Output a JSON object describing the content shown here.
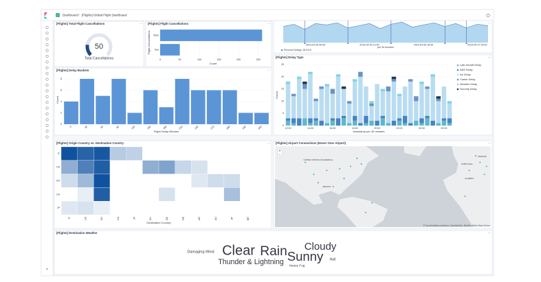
{
  "header": {
    "breadcrumb": "Dashboard",
    "title": "[Flights] Global Flight Dashboard"
  },
  "chart_data": [
    {
      "type": "gauge",
      "title": "[Flights] Total Flight Cancellations",
      "value": 50,
      "label": "Total Cancellations",
      "ylim": [
        0,
        250
      ],
      "color": "#1e4a86"
    },
    {
      "type": "hbar",
      "title": "[Flights] Flight Cancellations",
      "categories": [
        "false",
        "true"
      ],
      "values": [
        260,
        50
      ],
      "color": "#5b95d6",
      "xlim": [
        0,
        270
      ],
      "xticks": [
        0,
        50,
        100,
        150,
        200,
        250
      ],
      "x_label": "Count",
      "y_label": "Flight Cancellations"
    },
    {
      "type": "area",
      "categories": [
        null,
        null,
        null,
        "2019-04-26 06:00",
        null,
        null,
        null,
        null,
        "2019-04-26 12:00",
        null,
        null,
        null,
        null,
        "2019-04-26 18:00",
        null,
        null,
        null,
        null,
        "2019-04-27 00:00",
        null
      ],
      "series": [
        {
          "name": "Percent Delays",
          "color": "#6092c0",
          "values": [
            22,
            25,
            18,
            26,
            24,
            27,
            20,
            23,
            26,
            19,
            25,
            28,
            21,
            24,
            27,
            22,
            26,
            20,
            25,
            23
          ]
        }
      ],
      "legend_value": "15.91%",
      "ylim": [
        0,
        30
      ],
      "x_label": "per 30 minutes"
    },
    {
      "type": "bar",
      "title": "[Flights] Delay Buckets",
      "categories": [
        "0",
        "30",
        "60",
        "90",
        "120",
        "150",
        "180",
        "210",
        "240",
        "270",
        "300",
        "330",
        "360"
      ],
      "values": [
        4,
        8,
        5,
        8,
        2,
        6,
        3,
        8,
        6,
        6,
        6,
        2,
        2
      ],
      "color": "#5b95d6",
      "ylim": [
        0,
        8.6
      ],
      "yticks": [
        0,
        2,
        4,
        6,
        8
      ],
      "x_label": "Flight Delay Minutes",
      "y_label": "Count"
    },
    {
      "type": "stacked_bar",
      "title": "[Flights] Delay Type",
      "categories": [
        "12:00",
        null,
        null,
        null,
        "14:00",
        null,
        null,
        null,
        "16:00",
        null,
        null,
        null,
        "18:00",
        null,
        null,
        null,
        "20:00",
        null,
        null,
        null,
        "22:00",
        null,
        null,
        null,
        "00:00",
        null,
        null,
        null,
        "02:00",
        null
      ],
      "series": [
        {
          "name": "Late Aircraft Delay",
          "color": "#5fb8c9",
          "values": [
            2,
            1,
            0,
            3,
            1,
            2,
            0,
            1,
            2,
            0,
            3,
            1,
            2,
            0,
            1,
            2,
            0,
            3,
            1,
            0,
            2,
            1,
            0,
            2,
            1,
            3,
            0,
            1,
            2,
            1
          ]
        },
        {
          "name": "NAS Delay",
          "color": "#4a82c3",
          "values": [
            1,
            2,
            3,
            0,
            2,
            1,
            2,
            0,
            1,
            3,
            1,
            0,
            2,
            1,
            3,
            0,
            2,
            1,
            0,
            2,
            1,
            3,
            1,
            0,
            2,
            1,
            2,
            0,
            1,
            2
          ]
        },
        {
          "name": "No Delay",
          "color": "#b9dcf1",
          "values": [
            14,
            9,
            16,
            12,
            18,
            7,
            13,
            15,
            10,
            17,
            11,
            8,
            14,
            19,
            12,
            6,
            15,
            10,
            13,
            16,
            9,
            12,
            17,
            8,
            14,
            11,
            18,
            9,
            13,
            6
          ]
        },
        {
          "name": "Carrier Delay",
          "color": "#6a93c6",
          "values": [
            0,
            1,
            0,
            2,
            0,
            1,
            1,
            0,
            2,
            0,
            0,
            1,
            0,
            2,
            0,
            1,
            0,
            0,
            2,
            1,
            0,
            0,
            1,
            2,
            0,
            1,
            0,
            1,
            0,
            0
          ]
        },
        {
          "name": "Weather Delay",
          "color": "#7fd6e0",
          "values": [
            1,
            0,
            1,
            0,
            1,
            0,
            0,
            1,
            0,
            1,
            0,
            0,
            1,
            0,
            0,
            1,
            0,
            1,
            0,
            0,
            1,
            0,
            0,
            0,
            1,
            0,
            1,
            0,
            0,
            1
          ]
        },
        {
          "name": "Security Delay",
          "color": "#1f3850",
          "values": [
            0,
            0,
            0,
            1,
            0,
            0,
            0,
            0,
            0,
            0,
            1,
            0,
            0,
            0,
            0,
            0,
            0,
            0,
            0,
            1,
            0,
            0,
            0,
            0,
            0,
            0,
            0,
            1,
            0,
            0
          ]
        }
      ],
      "ylim": [
        0,
        25
      ],
      "yticks": [
        0,
        5,
        10,
        15,
        20,
        25
      ],
      "x_label": "timestamp per 30 minutes",
      "y_label": "Count"
    },
    {
      "type": "heatmap",
      "title": "[Flights] Origin Country vs. Destination Country",
      "x_categories": [
        "IT",
        "US",
        "CN",
        "CA",
        "JP",
        "CH",
        "DE",
        "GB",
        "AR",
        "AU",
        "AT",
        "BR"
      ],
      "y_categories": [
        "IT",
        "US",
        "CN",
        "CA",
        "JP"
      ],
      "values": [
        [
          30,
          27,
          29,
          9,
          8,
          0,
          0,
          0,
          0,
          0,
          0,
          0
        ],
        [
          14,
          22,
          28,
          0,
          0,
          14,
          16,
          7,
          5,
          0,
          0,
          0
        ],
        [
          6,
          12,
          30,
          0,
          0,
          0,
          0,
          0,
          4,
          6,
          6,
          0
        ],
        [
          0,
          3,
          28,
          0,
          0,
          0,
          5,
          0,
          0,
          0,
          11,
          0
        ],
        [
          4,
          5,
          3,
          0,
          0,
          0,
          0,
          0,
          0,
          0,
          0,
          0
        ]
      ],
      "zlim": [
        0,
        30
      ],
      "color": "#10529f",
      "x_label": "Destination Country"
    },
    {
      "type": "map",
      "title": "[Flights] Airport Connections (Hover Over Airport)",
      "labels": [
        "UNITED STATES OF AMERICA",
        "MEXICO",
        "PORTUGAL",
        "FRANCE",
        "ALGERIA"
      ],
      "attribution": "© OpenStreetMap contributors, OpenMapTiles, MapTiler, Elastic Maps Service"
    },
    {
      "type": "wordcloud",
      "title": "[Flights] Destination Weather",
      "words": [
        "Damaging Wind",
        "Clear",
        "Rain",
        "Cloudy",
        "Sunny",
        "Thunder & Lightning",
        "Hail",
        "Heavy Fog"
      ],
      "values": [
        52,
        140,
        136,
        112,
        132,
        86,
        50,
        46
      ],
      "colors": [
        "#a05bb4",
        "#3b6fb8",
        "#54b399",
        "#2fa6c9",
        "#d6568a",
        "#6db33f",
        "#b053b5",
        "#e07d2f"
      ]
    }
  ]
}
